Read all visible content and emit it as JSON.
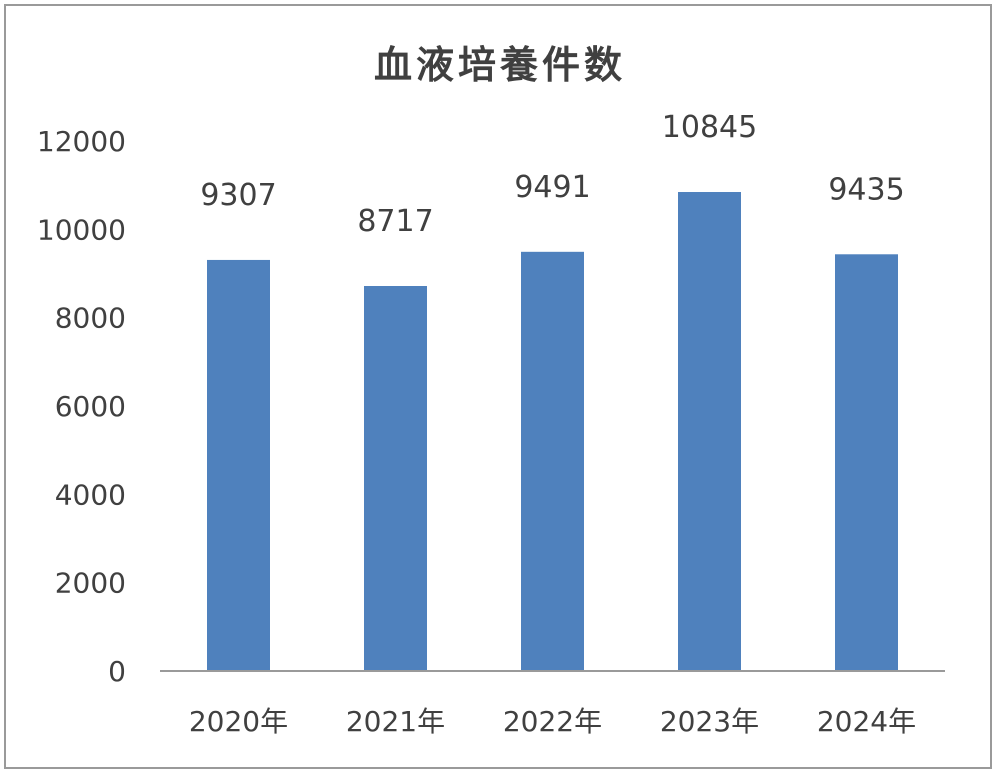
{
  "chart_data": {
    "type": "bar",
    "title": "血液培養件数",
    "categories": [
      "2020年",
      "2021年",
      "2022年",
      "2023年",
      "2024年"
    ],
    "values": [
      9307,
      8717,
      9491,
      10845,
      9435
    ],
    "data_labels": [
      "9307",
      "8717",
      "9491",
      "10845",
      "9435"
    ],
    "ylim": [
      0,
      12000
    ],
    "yticks": [
      "0",
      "2000",
      "4000",
      "6000",
      "8000",
      "10000",
      "12000"
    ],
    "xlabel": "",
    "ylabel": "",
    "grid": false,
    "legend": "none",
    "bar_color": "#4f81bd",
    "text_color": "#404040",
    "axis_color": "#9a9a9a"
  }
}
